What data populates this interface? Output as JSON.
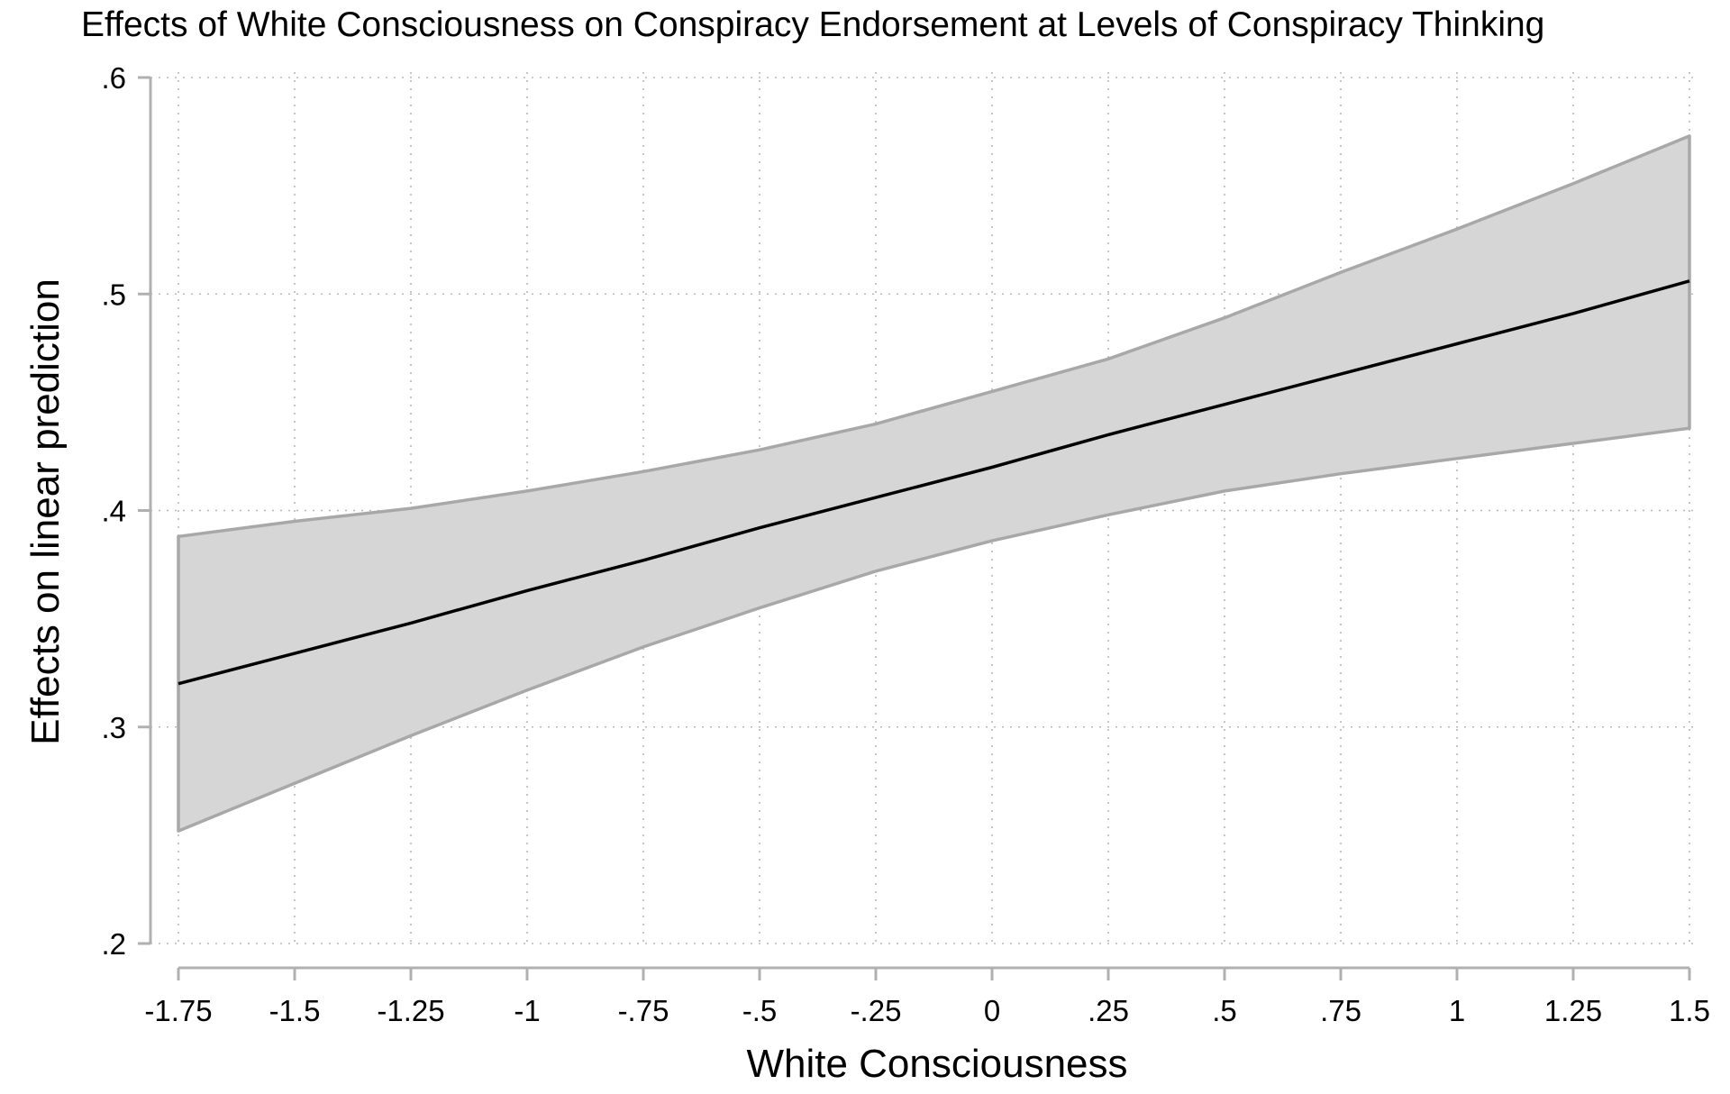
{
  "chart_data": {
    "type": "area",
    "title": "Effects of White Consciousness on Conspiracy Endorsement at Levels of Conspiracy Thinking",
    "xlabel": "White Consciousness",
    "ylabel": "Effects on linear prediction",
    "xlim": [
      -1.75,
      1.5
    ],
    "ylim": [
      0.2,
      0.6
    ],
    "x_ticks": [
      {
        "value": -1.75,
        "label": "-1.75"
      },
      {
        "value": -1.5,
        "label": "-1.5"
      },
      {
        "value": -1.25,
        "label": "-1.25"
      },
      {
        "value": -1,
        "label": "-1"
      },
      {
        "value": -0.75,
        "label": "-.75"
      },
      {
        "value": -0.5,
        "label": "-.5"
      },
      {
        "value": -0.25,
        "label": "-.25"
      },
      {
        "value": 0,
        "label": "0"
      },
      {
        "value": 0.25,
        "label": ".25"
      },
      {
        "value": 0.5,
        "label": ".5"
      },
      {
        "value": 0.75,
        "label": ".75"
      },
      {
        "value": 1,
        "label": "1"
      },
      {
        "value": 1.25,
        "label": "1.25"
      },
      {
        "value": 1.5,
        "label": "1.5"
      }
    ],
    "y_ticks": [
      {
        "value": 0.2,
        "label": ".2"
      },
      {
        "value": 0.3,
        "label": ".3"
      },
      {
        "value": 0.4,
        "label": ".4"
      },
      {
        "value": 0.5,
        "label": ".5"
      },
      {
        "value": 0.6,
        "label": ".6"
      }
    ],
    "grid": true,
    "legend": "none",
    "x": [
      -1.75,
      -1.5,
      -1.25,
      -1,
      -0.75,
      -0.5,
      -0.25,
      0,
      0.25,
      0.5,
      0.75,
      1,
      1.25,
      1.5
    ],
    "series": [
      {
        "values": [
          0.32,
          0.334,
          0.348,
          0.363,
          0.377,
          0.392,
          0.406,
          0.42,
          0.435,
          0.449,
          0.463,
          0.477,
          0.491,
          0.506
        ],
        "ci_lower": [
          0.252,
          0.274,
          0.296,
          0.317,
          0.337,
          0.355,
          0.372,
          0.386,
          0.398,
          0.409,
          0.417,
          0.424,
          0.431,
          0.438
        ],
        "ci_upper": [
          0.388,
          0.395,
          0.401,
          0.409,
          0.418,
          0.428,
          0.44,
          0.455,
          0.47,
          0.489,
          0.51,
          0.53,
          0.551,
          0.573
        ]
      }
    ],
    "colors": {
      "line": "#000000",
      "band_fill": "#d6d6d6",
      "band_edge": "#a8a8a8",
      "axis": "#b0b0b0",
      "grid": "#b8b8b8"
    }
  }
}
